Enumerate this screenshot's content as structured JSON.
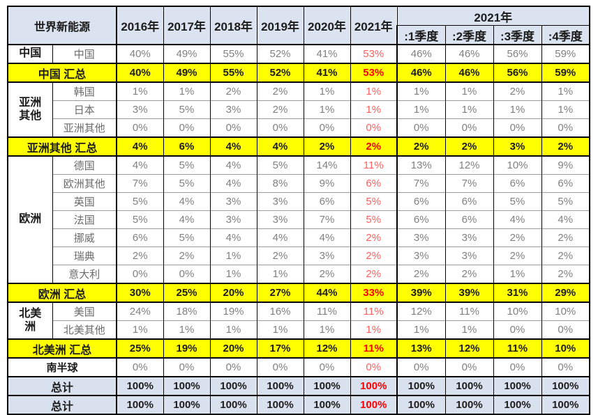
{
  "title": "世界新能源",
  "colors": {
    "header_bg": "#dbe3f0",
    "summary_row_bg": "#ffff00",
    "total_row_bg": "#d9e0ee",
    "value_text": "#808080",
    "red_highlight_bold": "#ff0000",
    "red_highlight_light": "#ff5f5f",
    "grid_black": "#000000",
    "grid_gray": "#9b9b9b"
  },
  "chart_data": {
    "type": "table",
    "corner_label": "世界新能源",
    "year_columns": [
      "2016年",
      "2017年",
      "2018年",
      "2019年",
      "2020年",
      "2021年"
    ],
    "quarter_group_label": "2021年",
    "quarter_columns": [
      ":1季度",
      ":2季度",
      ":3季度",
      ":4季度"
    ],
    "highlight_column_index": 5,
    "rows": [
      {
        "type": "data",
        "region": {
          "label": "中国",
          "rowspan": 1
        },
        "label": "中国",
        "values": [
          "40%",
          "49%",
          "55%",
          "52%",
          "41%",
          "53%",
          "46%",
          "46%",
          "56%",
          "59%"
        ]
      },
      {
        "type": "summary",
        "label": "中国 汇总",
        "values": [
          "40%",
          "49%",
          "55%",
          "52%",
          "41%",
          "53%",
          "46%",
          "46%",
          "56%",
          "59%"
        ]
      },
      {
        "type": "data",
        "region": {
          "label": "亚洲其他",
          "rowspan": 3
        },
        "label": "韩国",
        "values": [
          "1%",
          "1%",
          "2%",
          "2%",
          "1%",
          "1%",
          "1%",
          "1%",
          "2%",
          "1%"
        ]
      },
      {
        "type": "data",
        "label": "日本",
        "values": [
          "3%",
          "5%",
          "3%",
          "2%",
          "1%",
          "1%",
          "1%",
          "1%",
          "1%",
          "1%"
        ]
      },
      {
        "type": "data",
        "label": "亚洲其他",
        "values": [
          "0%",
          "0%",
          "0%",
          "0%",
          "0%",
          "0%",
          "0%",
          "0%",
          "0%",
          "0%"
        ]
      },
      {
        "type": "summary",
        "label": "亚洲其他 汇总",
        "values": [
          "4%",
          "6%",
          "4%",
          "4%",
          "2%",
          "2%",
          "2%",
          "2%",
          "3%",
          "2%"
        ]
      },
      {
        "type": "data",
        "region": {
          "label": "欧洲",
          "rowspan": 7
        },
        "label": "德国",
        "values": [
          "4%",
          "5%",
          "4%",
          "5%",
          "14%",
          "11%",
          "13%",
          "12%",
          "10%",
          "9%"
        ]
      },
      {
        "type": "data",
        "label": "欧洲其他",
        "values": [
          "7%",
          "5%",
          "4%",
          "8%",
          "9%",
          "6%",
          "7%",
          "7%",
          "6%",
          "6%"
        ]
      },
      {
        "type": "data",
        "label": "英国",
        "values": [
          "5%",
          "4%",
          "3%",
          "3%",
          "6%",
          "5%",
          "6%",
          "6%",
          "5%",
          "5%"
        ]
      },
      {
        "type": "data",
        "label": "法国",
        "values": [
          "5%",
          "4%",
          "3%",
          "3%",
          "7%",
          "5%",
          "6%",
          "6%",
          "4%",
          "4%"
        ]
      },
      {
        "type": "data",
        "label": "挪威",
        "values": [
          "6%",
          "5%",
          "4%",
          "4%",
          "4%",
          "2%",
          "3%",
          "3%",
          "2%",
          "2%"
        ]
      },
      {
        "type": "data",
        "label": "瑞典",
        "values": [
          "2%",
          "2%",
          "1%",
          "2%",
          "3%",
          "2%",
          "3%",
          "3%",
          "2%",
          "2%"
        ]
      },
      {
        "type": "data",
        "label": "意大利",
        "values": [
          "0%",
          "0%",
          "1%",
          "1%",
          "2%",
          "2%",
          "2%",
          "2%",
          "1%",
          "2%"
        ]
      },
      {
        "type": "summary",
        "label": "欧洲 汇总",
        "values": [
          "30%",
          "25%",
          "20%",
          "27%",
          "44%",
          "33%",
          "39%",
          "39%",
          "31%",
          "29%"
        ]
      },
      {
        "type": "data",
        "region": {
          "label": "北美洲",
          "rowspan": 2
        },
        "label": "美国",
        "values": [
          "24%",
          "18%",
          "19%",
          "16%",
          "11%",
          "11%",
          "12%",
          "11%",
          "10%",
          "10%"
        ]
      },
      {
        "type": "data",
        "label": "北美其他",
        "values": [
          "1%",
          "1%",
          "1%",
          "1%",
          "1%",
          "1%",
          "1%",
          "1%",
          "0%",
          "0%"
        ]
      },
      {
        "type": "summary",
        "label": "北美洲 汇总",
        "values": [
          "25%",
          "19%",
          "20%",
          "17%",
          "12%",
          "11%",
          "13%",
          "12%",
          "11%",
          "10%"
        ]
      },
      {
        "type": "single",
        "label": "南半球",
        "values": [
          "0%",
          "0%",
          "0%",
          "0%",
          "0%",
          "0%",
          "0%",
          "0%",
          "0%",
          "0%"
        ]
      },
      {
        "type": "total",
        "label": "总计",
        "values": [
          "100%",
          "100%",
          "100%",
          "100%",
          "100%",
          "100%",
          "100%",
          "100%",
          "100%",
          "100%"
        ]
      },
      {
        "type": "total",
        "label": "总计",
        "values": [
          "100%",
          "100%",
          "100%",
          "100%",
          "100%",
          "100%",
          "100%",
          "100%",
          "100%",
          "100%"
        ]
      }
    ]
  }
}
